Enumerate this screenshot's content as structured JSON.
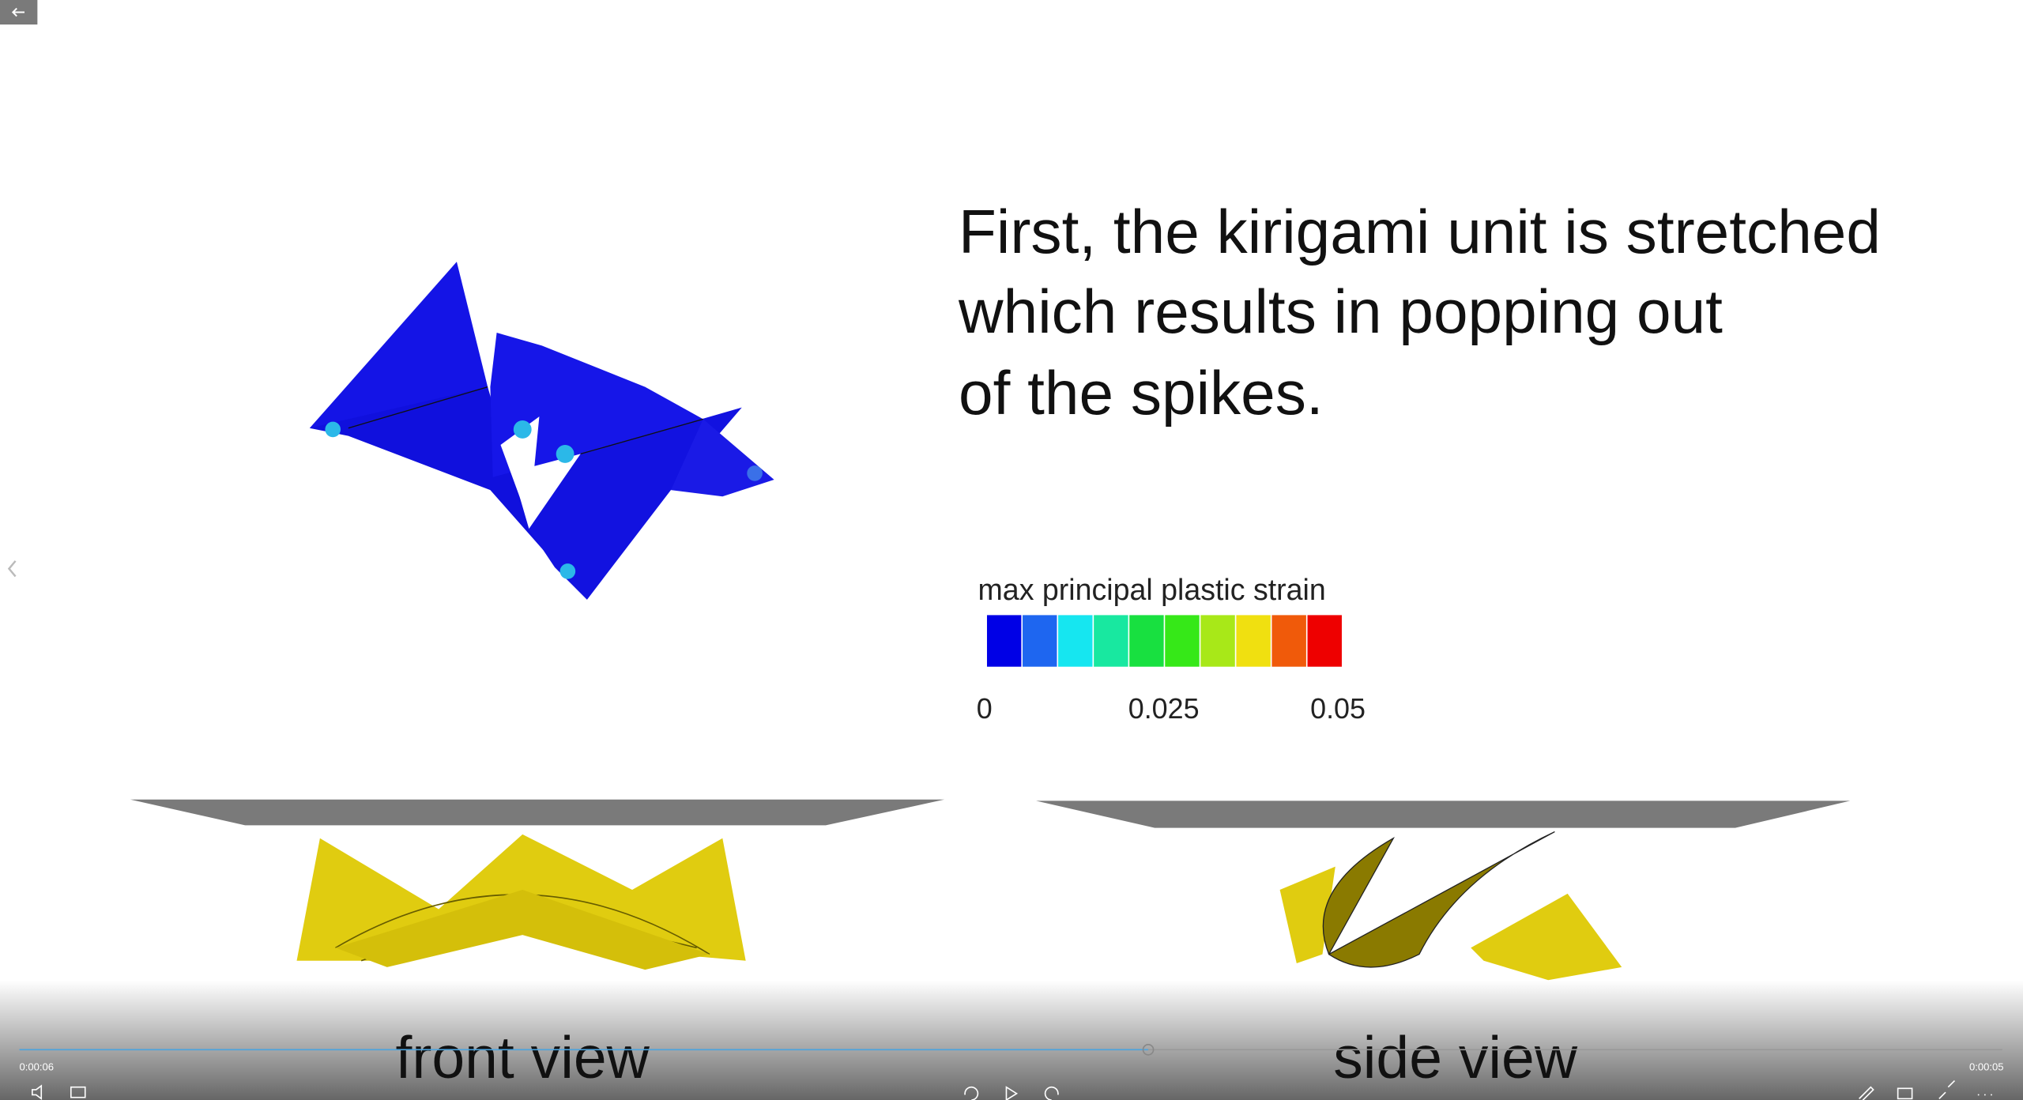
{
  "caption": {
    "lines": [
      "First, the kirigami unit is stretched",
      "which results in popping out",
      "of the spikes."
    ]
  },
  "legend": {
    "title": "max principal plastic strain",
    "ticks": [
      "0",
      "0.025",
      "0.05"
    ]
  },
  "views": {
    "front": "front view",
    "side": "side view"
  },
  "player": {
    "elapsed": "0:00:06",
    "remaining": "0:00:05"
  }
}
